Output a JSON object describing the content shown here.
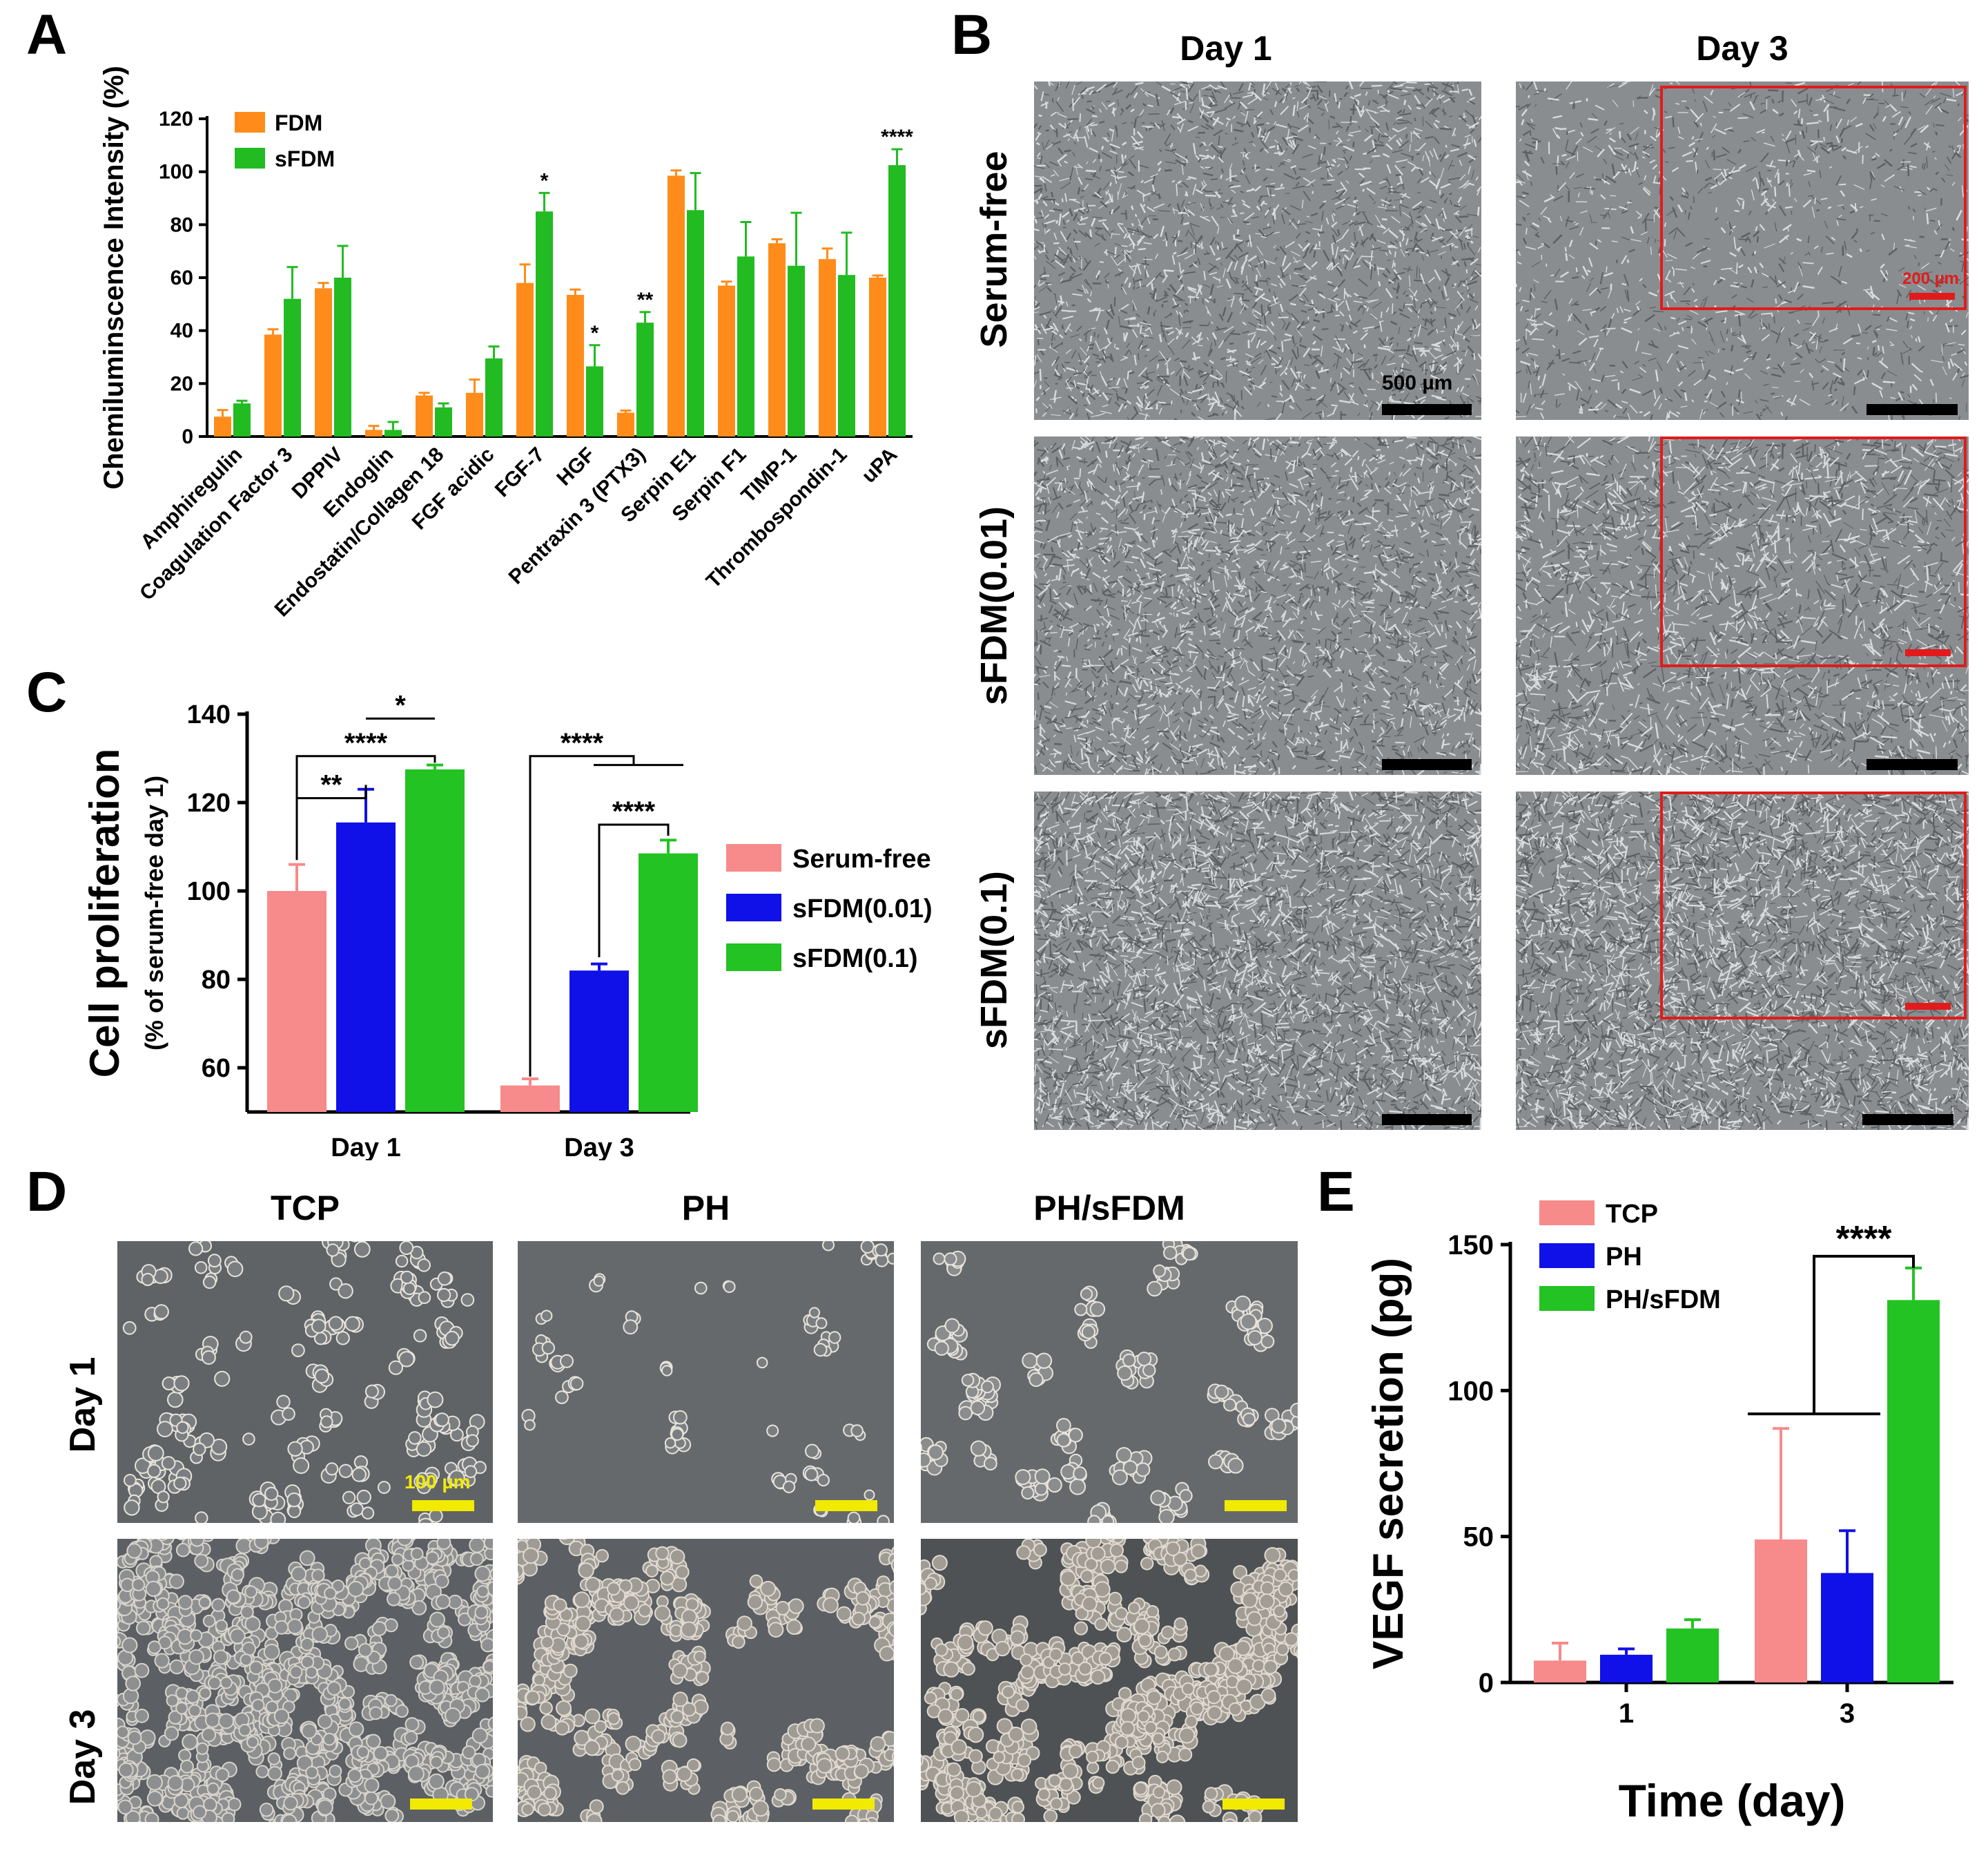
{
  "panels": {
    "a": "A",
    "b": "B",
    "c": "C",
    "d": "D",
    "e": "E"
  },
  "colors": {
    "fdm": "#ff8c1a",
    "sfdm": "#22bb22",
    "serum_free": "#f78a8a",
    "sfdm_001": "#1010e8",
    "sfdm_01": "#22c322",
    "tcp": "#f78a8a",
    "ph": "#1010e8",
    "ph_sfdm": "#22c322",
    "scale_black": "#000000",
    "scale_red": "#e11b1b",
    "scale_yellow": "#f2ea00"
  },
  "panel_b": {
    "col_day1": "Day 1",
    "col_day3": "Day 3",
    "row_serum_free": "Serum-free",
    "row_sfdm_001": "sFDM(0.01)",
    "row_sfdm_01": "sFDM(0.1)",
    "scale_main": "500 µm",
    "scale_inset": "200 µm"
  },
  "panel_d": {
    "col_tcp": "TCP",
    "col_ph": "PH",
    "col_ph_sfdm": "PH/sFDM",
    "row_day1": "Day 1",
    "row_day3": "Day 3",
    "scale": "100 µm"
  },
  "chart_data": [
    {
      "id": "A",
      "type": "bar",
      "ylabel": "Chemiluminscence Intensity (%)",
      "ylim": [
        0,
        120
      ],
      "yticks": [
        0,
        20,
        40,
        60,
        80,
        100,
        120
      ],
      "legend": "top-left",
      "categories": [
        "Amphiregulin",
        "Coagulation Factor 3",
        "DPPIV",
        "Endoglin",
        "Endostatin/Collagen 18",
        "FGF acidic",
        "FGF-7",
        "HGF",
        "Pentraxin 3 (PTX3)",
        "Serpin E1",
        "Serpin F1",
        "TIMP-1",
        "Thrombospondin-1",
        "uPA"
      ],
      "series": [
        {
          "name": "FDM",
          "values": [
            7.5,
            38.5,
            56,
            2.5,
            15.5,
            16.5,
            58,
            53.5,
            9,
            98.5,
            57,
            73,
            67,
            60
          ],
          "errors": [
            2.5,
            2,
            2,
            1.5,
            1,
            5,
            7,
            2,
            0.8,
            2,
            1.5,
            1.5,
            4,
            0.8
          ]
        },
        {
          "name": "sFDM",
          "values": [
            12.5,
            52,
            60,
            2.5,
            11,
            29.5,
            85,
            26.5,
            43,
            85.5,
            68,
            64.5,
            61,
            102.5
          ],
          "errors": [
            1,
            12,
            12,
            3,
            1.5,
            4.5,
            7,
            8,
            4,
            14,
            13,
            20,
            16,
            6
          ]
        }
      ],
      "annotations": [
        {
          "category": "FGF-7",
          "text": "*"
        },
        {
          "category": "HGF",
          "text": "*"
        },
        {
          "category": "Pentraxin 3 (PTX3)",
          "text": "**"
        },
        {
          "category": "uPA",
          "text": "****"
        }
      ]
    },
    {
      "id": "C",
      "type": "bar",
      "ylabel": "Cell proliferation",
      "ylabel2": "(% of serum-free day 1)",
      "ylim": [
        50,
        140
      ],
      "yticks": [
        60,
        80,
        100,
        120,
        140
      ],
      "legend": "right",
      "categories": [
        "Day 1",
        "Day 3"
      ],
      "series": [
        {
          "name": "Serum-free",
          "values": [
            100,
            56
          ],
          "errors": [
            6,
            1.5
          ]
        },
        {
          "name": "sFDM(0.01)",
          "values": [
            115.5,
            82
          ],
          "errors": [
            7.5,
            1.5
          ]
        },
        {
          "name": "sFDM(0.1)",
          "values": [
            127.5,
            108.5
          ],
          "errors": [
            1,
            3
          ]
        }
      ],
      "significance": [
        {
          "text": "**"
        },
        {
          "text": "****"
        },
        {
          "text": "*"
        },
        {
          "text": "****"
        },
        {
          "text": "****"
        }
      ]
    },
    {
      "id": "E",
      "type": "bar",
      "xlabel": "Time (day)",
      "ylabel": "VEGF secretion (pg)",
      "ylim": [
        0,
        150
      ],
      "yticks": [
        0,
        50,
        100,
        150
      ],
      "legend": "top-left",
      "categories": [
        "1",
        "3"
      ],
      "series": [
        {
          "name": "TCP",
          "values": [
            7.5,
            49
          ],
          "errors": [
            6,
            38
          ]
        },
        {
          "name": "PH",
          "values": [
            9.5,
            37.5
          ],
          "errors": [
            2,
            14.5
          ]
        },
        {
          "name": "PH/sFDM",
          "values": [
            18.5,
            131
          ],
          "errors": [
            3,
            11
          ]
        }
      ],
      "significance": [
        {
          "text": "****"
        }
      ]
    }
  ]
}
